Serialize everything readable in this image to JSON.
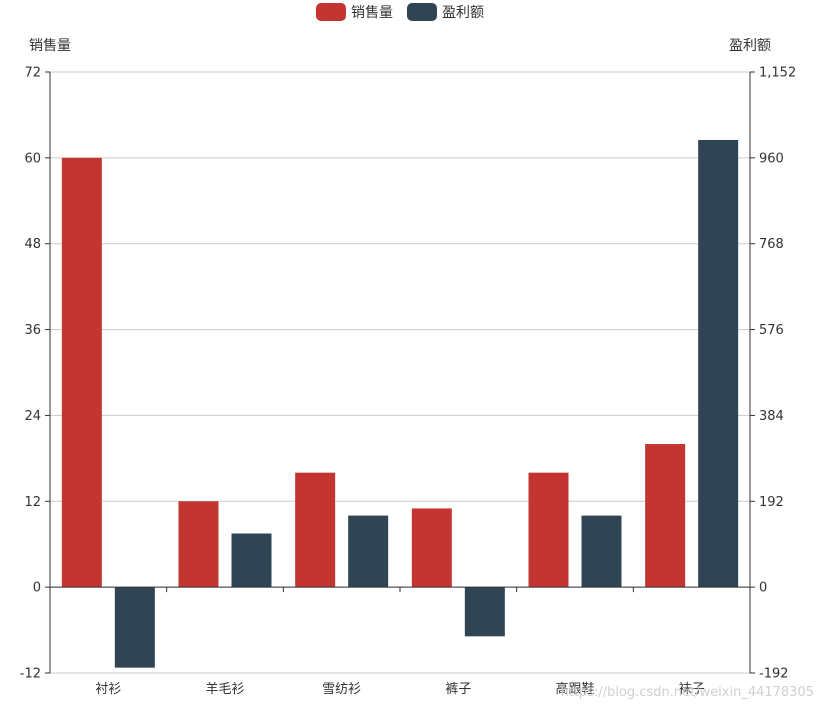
{
  "chart_data": {
    "type": "bar",
    "categories": [
      "衬衫",
      "羊毛衫",
      "雪纺衫",
      "裤子",
      "高跟鞋",
      "袜子"
    ],
    "series": [
      {
        "name": "销售量",
        "axis": "left",
        "color": "#c23531",
        "values": [
          60,
          12,
          16,
          11,
          16,
          20
        ]
      },
      {
        "name": "盈利额",
        "axis": "right",
        "color": "#2f4554",
        "values": [
          -180,
          120,
          160,
          -110,
          160,
          1000
        ]
      }
    ],
    "y_left": {
      "label": "销售量",
      "ylim": [
        -12,
        72
      ],
      "ticks": [
        -12,
        0,
        12,
        24,
        36,
        48,
        60,
        72
      ],
      "tick_labels": [
        "-12",
        "0",
        "12",
        "24",
        "36",
        "48",
        "60",
        "72"
      ]
    },
    "y_right": {
      "label": "盈利额",
      "ylim": [
        -192,
        1152
      ],
      "ticks": [
        -192,
        0,
        192,
        384,
        576,
        768,
        960,
        1152
      ],
      "tick_labels": [
        "-192",
        "0",
        "192",
        "384",
        "576",
        "768",
        "960",
        "1,152"
      ]
    },
    "grid": true,
    "legend_position": "top-center"
  },
  "watermark": "https://blog.csdn.net/weixin_44178305"
}
